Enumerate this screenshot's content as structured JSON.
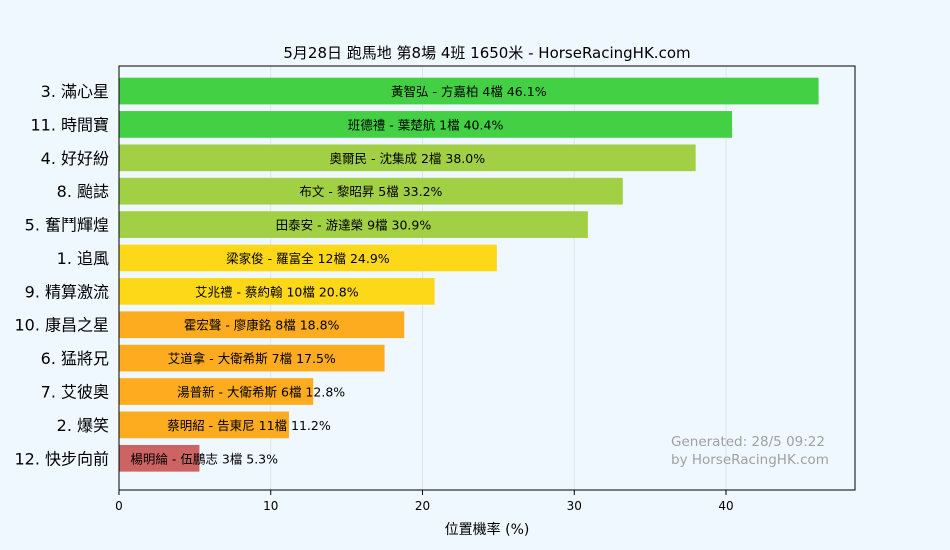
{
  "chart_data": {
    "type": "bar",
    "orientation": "horizontal",
    "title": "5月28日  跑馬地  第8場  4班  1650米 - HorseRacingHK.com",
    "xlabel": "位置機率 (%)",
    "ylabel": "",
    "xlim": [
      0,
      48.5
    ],
    "xticks": [
      0,
      10,
      20,
      30,
      40
    ],
    "grid": "vertical",
    "categories": [
      "3. 滿心星",
      "11. 時間寶",
      "4. 好好紛",
      "8. 颱誌",
      "5. 奮鬥輝煌",
      "1. 追風",
      "9. 精算激流",
      "10. 康昌之星",
      "6. 猛將兄",
      "7. 艾彼奧",
      "2. 爆笑",
      "12. 快步向前"
    ],
    "values": [
      46.1,
      40.4,
      38.0,
      33.2,
      30.9,
      24.9,
      20.8,
      18.8,
      17.5,
      12.8,
      11.2,
      5.3
    ],
    "bar_labels": [
      "黃智弘 - 方嘉柏 4檔  46.1%",
      "班德禮 - 葉楚航 1檔  40.4%",
      "奧爾民 - 沈集成 2檔  38.0%",
      "布文 - 黎昭昇 5檔  33.2%",
      "田泰安 - 游達榮 9檔  30.9%",
      "梁家俊 - 羅富全 12檔  24.9%",
      "艾兆禮 - 蔡約翰 10檔  20.8%",
      "霍宏聲 - 廖康銘 8檔  18.8%",
      "艾道拿 - 大衛希斯 7檔  17.5%",
      "湯普新 - 大衛希斯 6檔  12.8%",
      "蔡明紹 - 告東尼 11檔  11.2%",
      "楊明綸 - 伍鵬志 3檔  5.3%"
    ],
    "colors": [
      "#44d044",
      "#44d044",
      "#a2d044",
      "#a2d044",
      "#a2d044",
      "#fdd818",
      "#fdd818",
      "#fdac20",
      "#fdac20",
      "#fdac20",
      "#fdac20",
      "#cd6464"
    ],
    "annotation": [
      "Generated: 28/5 09:22",
      "by HorseRacingHK.com"
    ]
  }
}
